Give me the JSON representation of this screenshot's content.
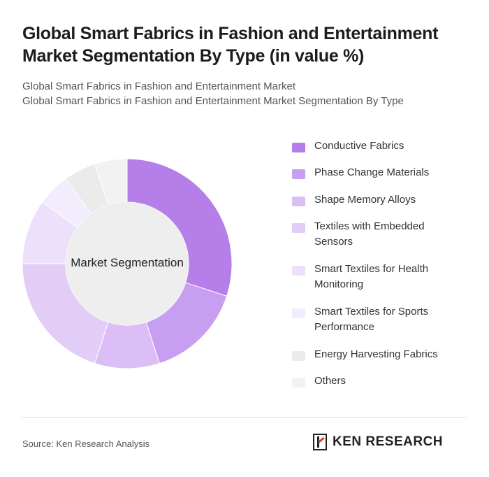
{
  "title": "Global Smart Fabrics in Fashion and Entertainment Market Segmentation By Type (in value %)",
  "subtitle_1": "Global Smart Fabrics in Fashion and Entertainment Market",
  "subtitle_2": "Global Smart Fabrics in Fashion and Entertainment Market Segmentation By Type",
  "source": "Source: Ken Research Analysis",
  "logo_text": "KEN RESEARCH",
  "chart_data": {
    "type": "pie",
    "donut": true,
    "center_label": "Market Segmentation",
    "legend_position": "right",
    "categories": [
      "Conductive Fabrics",
      "Phase Change Materials",
      "Shape Memory Alloys",
      "Textiles with Embedded Sensors",
      "Smart Textiles for Health Monitoring",
      "Smart Textiles for Sports Performance",
      "Energy Harvesting Fabrics",
      "Others"
    ],
    "values": [
      30,
      15,
      10,
      20,
      10,
      5,
      5,
      5
    ],
    "colors": [
      "#b57ee9",
      "#c89ef0",
      "#dbbef6",
      "#e2cdf7",
      "#ece0fa",
      "#f3ecfc",
      "#ebebeb",
      "#f2f2f2"
    ]
  }
}
